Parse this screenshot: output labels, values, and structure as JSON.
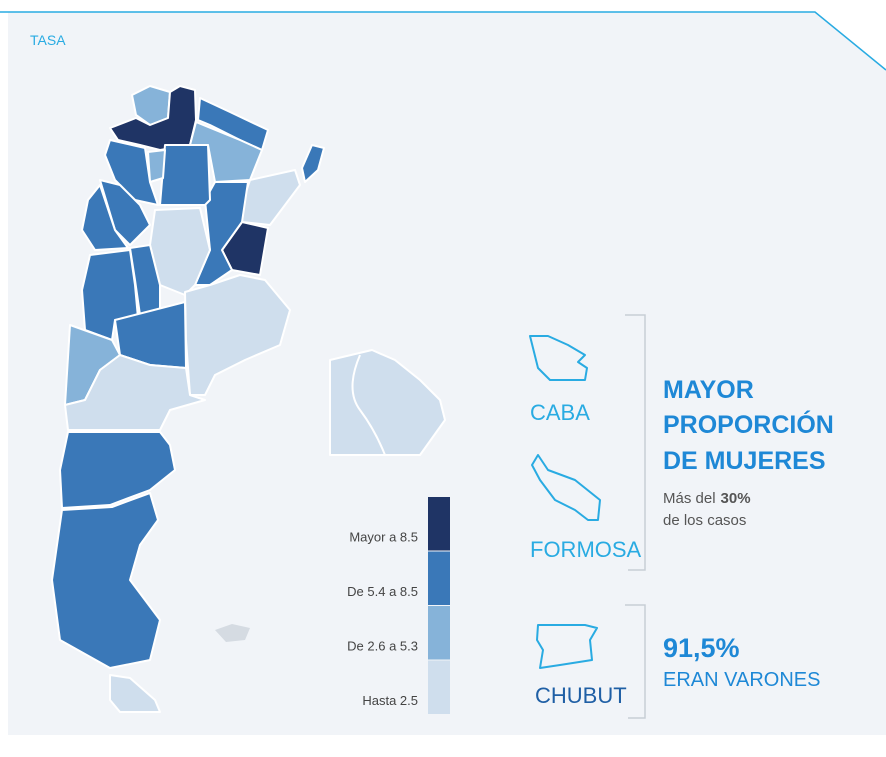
{
  "header": {
    "title": "TASA"
  },
  "legend": {
    "items": [
      {
        "label": "Mayor a 8.5",
        "color": "#1f3465"
      },
      {
        "label": "De 5.4 a 8.5",
        "color": "#3a78b8"
      },
      {
        "label": "De 2.6 a 5.3",
        "color": "#86b3d9"
      },
      {
        "label": "Hasta 2.5",
        "color": "#cfdeed"
      }
    ]
  },
  "highlights": {
    "women": {
      "places": [
        "CABA",
        "FORMOSA"
      ],
      "headline": [
        "MAYOR",
        "PROPORCIÓN",
        "DE MUJERES"
      ],
      "note": [
        "Más del",
        "30%",
        "de los casos"
      ]
    },
    "men": {
      "place": "CHUBUT",
      "figure": "91,5%",
      "text": "ERAN VARONES"
    }
  }
}
